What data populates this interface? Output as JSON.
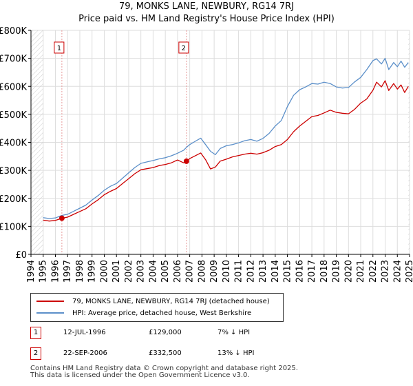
{
  "title_line1": "79, MONKS LANE, NEWBURY, RG14 7RJ",
  "title_line2": "Price paid vs. HM Land Registry's House Price Index (HPI)",
  "colors": {
    "price": "#cc0000",
    "hpi": "#5b8fc9",
    "grid": "#dddddd",
    "plot_bg": "#ffffff",
    "hatch": "#cccccc",
    "marker_line": "#e89a9a"
  },
  "chart_data": {
    "type": "line",
    "title": "Price paid vs. HM Land Registry's House Price Index (HPI)",
    "xlim": [
      1994,
      2025
    ],
    "ylim": [
      0,
      800000
    ],
    "x_ticks": [
      1994,
      1995,
      1996,
      1997,
      1998,
      1999,
      2000,
      2001,
      2002,
      2003,
      2004,
      2005,
      2006,
      2007,
      2008,
      2009,
      2010,
      2011,
      2012,
      2013,
      2014,
      2015,
      2016,
      2017,
      2018,
      2019,
      2020,
      2021,
      2022,
      2023,
      2024,
      2025
    ],
    "y_ticks": [
      {
        "value": 0,
        "label": "£0"
      },
      {
        "value": 100000,
        "label": "£100K"
      },
      {
        "value": 200000,
        "label": "£200K"
      },
      {
        "value": 300000,
        "label": "£300K"
      },
      {
        "value": 400000,
        "label": "£400K"
      },
      {
        "value": 500000,
        "label": "£500K"
      },
      {
        "value": 600000,
        "label": "£600K"
      },
      {
        "value": 700000,
        "label": "£700K"
      },
      {
        "value": 800000,
        "label": "£800K"
      }
    ],
    "data_start": 1995.0,
    "data_end": 2024.9,
    "series": [
      {
        "name": "79, MONKS LANE, NEWBURY, RG14 7RJ (detached house)",
        "key": "price",
        "x": [
          1995.0,
          1995.5,
          1996.0,
          1996.53,
          1997.0,
          1997.5,
          1998.0,
          1998.5,
          1999.0,
          1999.5,
          2000.0,
          2000.5,
          2001.0,
          2001.5,
          2002.0,
          2002.5,
          2003.0,
          2003.5,
          2004.0,
          2004.5,
          2005.0,
          2005.5,
          2006.0,
          2006.5,
          2006.73,
          2007.0,
          2007.5,
          2007.9,
          2008.3,
          2008.7,
          2009.1,
          2009.5,
          2010.0,
          2010.5,
          2011.0,
          2011.5,
          2012.0,
          2012.5,
          2013.0,
          2013.5,
          2014.0,
          2014.5,
          2015.0,
          2015.5,
          2016.0,
          2016.5,
          2017.0,
          2017.5,
          2018.0,
          2018.5,
          2019.0,
          2019.5,
          2020.0,
          2020.5,
          2021.0,
          2021.5,
          2022.0,
          2022.3,
          2022.7,
          2023.0,
          2023.3,
          2023.7,
          2024.0,
          2024.3,
          2024.6,
          2024.9
        ],
        "values": [
          122000,
          119000,
          121000,
          129000,
          133000,
          143000,
          153000,
          163000,
          180000,
          195000,
          213000,
          225000,
          235000,
          253000,
          270000,
          288000,
          302000,
          306000,
          310000,
          317000,
          321000,
          327000,
          337000,
          327000,
          332500,
          342000,
          353000,
          362000,
          338000,
          305000,
          312000,
          333000,
          340000,
          348000,
          353000,
          358000,
          361000,
          358000,
          363000,
          372000,
          385000,
          392000,
          410000,
          438000,
          458000,
          475000,
          492000,
          496000,
          505000,
          515000,
          507000,
          504000,
          502000,
          518000,
          540000,
          555000,
          586000,
          615000,
          598000,
          620000,
          585000,
          610000,
          590000,
          605000,
          578000,
          600000
        ]
      },
      {
        "name": "HPI: Average price, detached house, West Berkshire",
        "key": "hpi",
        "x": [
          1995.0,
          1995.5,
          1996.0,
          1996.53,
          1997.0,
          1997.5,
          1998.0,
          1998.5,
          1999.0,
          1999.5,
          2000.0,
          2000.5,
          2001.0,
          2001.5,
          2002.0,
          2002.5,
          2003.0,
          2003.5,
          2004.0,
          2004.5,
          2005.0,
          2005.5,
          2006.0,
          2006.5,
          2006.73,
          2007.0,
          2007.5,
          2007.9,
          2008.3,
          2008.7,
          2009.1,
          2009.5,
          2010.0,
          2010.5,
          2011.0,
          2011.5,
          2012.0,
          2012.5,
          2013.0,
          2013.5,
          2014.0,
          2014.5,
          2015.0,
          2015.5,
          2016.0,
          2016.5,
          2017.0,
          2017.5,
          2018.0,
          2018.5,
          2019.0,
          2019.5,
          2020.0,
          2020.5,
          2021.0,
          2021.5,
          2022.0,
          2022.3,
          2022.7,
          2023.0,
          2023.3,
          2023.7,
          2024.0,
          2024.3,
          2024.6,
          2024.9
        ],
        "values": [
          131000,
          128000,
          130000,
          139000,
          143000,
          154000,
          165000,
          176000,
          194000,
          210000,
          229000,
          243000,
          253000,
          272000,
          291000,
          310000,
          325000,
          330000,
          335000,
          341000,
          345000,
          352000,
          361000,
          372000,
          382000,
          392000,
          405000,
          415000,
          392000,
          368000,
          356000,
          378000,
          388000,
          392000,
          398000,
          406000,
          410000,
          404000,
          414000,
          432000,
          458000,
          478000,
          528000,
          568000,
          588000,
          598000,
          610000,
          608000,
          615000,
          610000,
          598000,
          594000,
          596000,
          616000,
          632000,
          660000,
          692000,
          698000,
          680000,
          700000,
          660000,
          685000,
          670000,
          690000,
          668000,
          685000
        ]
      }
    ],
    "annotations": [
      {
        "id": "1",
        "x": 1996.53,
        "value": 129000
      },
      {
        "id": "2",
        "x": 2006.73,
        "value": 332500
      }
    ]
  },
  "legend": {
    "price_label": "79, MONKS LANE, NEWBURY, RG14 7RJ (detached house)",
    "hpi_label": "HPI: Average price, detached house, West Berkshire"
  },
  "sales": [
    {
      "id": "1",
      "date": "12-JUL-1996",
      "price": "£129,000",
      "hpi": "7% ↓ HPI"
    },
    {
      "id": "2",
      "date": "22-SEP-2006",
      "price": "£332,500",
      "hpi": "13% ↓ HPI"
    }
  ],
  "footer_line1": "Contains HM Land Registry data © Crown copyright and database right 2025.",
  "footer_line2": "This data is licensed under the Open Government Licence v3.0."
}
